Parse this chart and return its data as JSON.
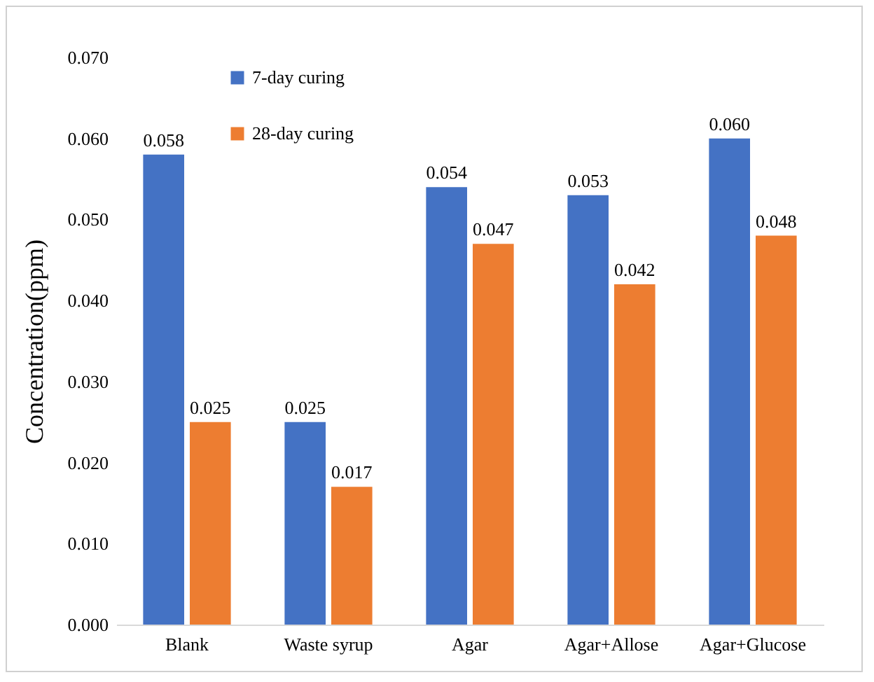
{
  "chart_data": {
    "type": "bar",
    "ylabel": "Concentration(ppm)",
    "categories": [
      "Blank",
      "Waste syrup",
      "Agar",
      "Agar+Allose",
      "Agar+Glucose"
    ],
    "series": [
      {
        "name": "7-day curing",
        "color": "#4472c4",
        "values": [
          0.058,
          0.025,
          0.054,
          0.053,
          0.06
        ],
        "value_labels": [
          "0.058",
          "0.025",
          "0.054",
          "0.053",
          "0.060"
        ]
      },
      {
        "name": "28-day curing",
        "color": "#ed7d31",
        "values": [
          0.025,
          0.017,
          0.047,
          0.042,
          0.048
        ],
        "value_labels": [
          "0.025",
          "0.017",
          "0.047",
          "0.042",
          "0.048"
        ]
      }
    ],
    "ylim": [
      0,
      0.07
    ],
    "yticks": [
      {
        "value": 0,
        "label": "0.000"
      },
      {
        "value": 0.01,
        "label": "0.010"
      },
      {
        "value": 0.02,
        "label": "0.020"
      },
      {
        "value": 0.03,
        "label": "0.030"
      },
      {
        "value": 0.04,
        "label": "0.040"
      },
      {
        "value": 0.05,
        "label": "0.050"
      },
      {
        "value": 0.06,
        "label": "0.060"
      },
      {
        "value": 0.07,
        "label": "0.070"
      }
    ],
    "grid": false,
    "legend": "top left"
  }
}
